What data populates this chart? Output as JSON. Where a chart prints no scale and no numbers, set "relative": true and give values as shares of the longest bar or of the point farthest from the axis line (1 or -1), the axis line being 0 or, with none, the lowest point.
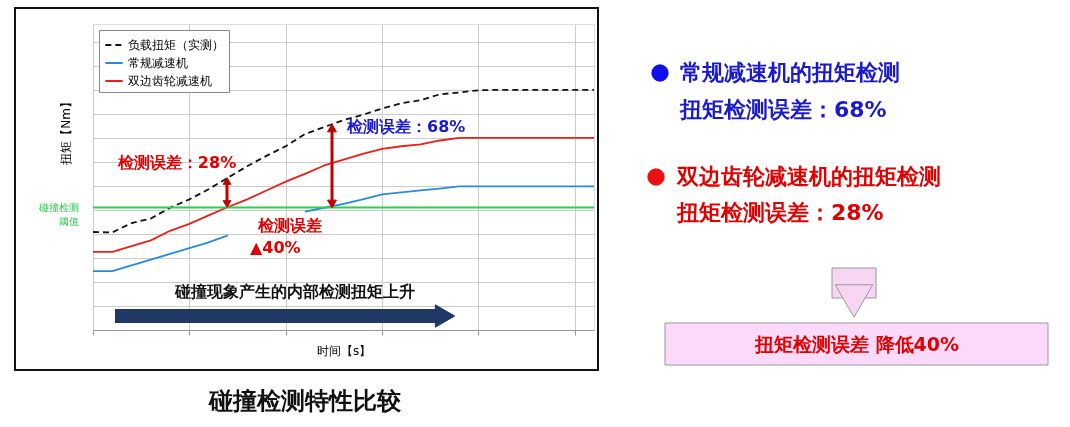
{
  "chart_data": {
    "type": "line",
    "relative": true,
    "title": "碰撞检测特性比较",
    "xlabel": "时间【s】",
    "ylabel": "扭矩【Nm】",
    "categories": [
      null,
      null,
      null,
      null,
      null,
      null,
      null,
      null,
      null,
      null,
      null,
      null,
      null,
      null,
      null,
      null,
      null,
      null,
      null,
      null,
      null,
      null,
      null,
      null,
      null,
      null,
      null
    ],
    "series": [
      {
        "name": "负载扭矩（实测）",
        "color": "#111111",
        "line_style": "dashed",
        "values": [
          0.408,
          0.406,
          0.445,
          0.464,
          0.509,
          0.544,
          0.586,
          0.634,
          0.682,
          0.725,
          0.765,
          0.816,
          0.845,
          0.874,
          0.896,
          0.922,
          0.944,
          0.957,
          0.981,
          0.989,
          0.998,
          1,
          1,
          1,
          1,
          1,
          1
        ]
      },
      {
        "name": "常规减速机",
        "color": "#2a8ad8",
        "line_style": "solid",
        "values": [
          0.245,
          0.245,
          0.269,
          0.293,
          0.317,
          0.341,
          0.365,
          0.394,
          null,
          null,
          null,
          0.493,
          0.509,
          0.525,
          0.544,
          0.565,
          0.573,
          0.581,
          0.589,
          0.598,
          0.598,
          0.598,
          0.598,
          0.598,
          0.598,
          0.598,
          0.598
        ]
      },
      {
        "name": "双边齿轮减速机",
        "color": "#e8201c",
        "line_style": "solid",
        "values": [
          0.325,
          0.325,
          0.349,
          0.373,
          0.413,
          0.442,
          0.477,
          0.512,
          0.544,
          0.581,
          0.618,
          0.65,
          0.685,
          0.709,
          0.733,
          0.754,
          0.765,
          0.773,
          0.789,
          0.8,
          0.8,
          0.8,
          0.8,
          0.8,
          0.8,
          0.8,
          0.8
        ]
      }
    ],
    "ref_lines": [
      {
        "axis": "y",
        "value": 0.51,
        "label": "碰撞检测阈值",
        "color": "#2ecc50"
      }
    ],
    "grid": true,
    "legend": "top left",
    "tick_labels": false,
    "annotations": [
      "检测误差：28%",
      "检测误差：68%",
      "检测误差",
      "▲40%",
      "碰撞现象产生的内部检测扭矩上升",
      "常规减速机的扭矩检测",
      "扭矩检测误差：68%",
      "双边齿轮减速机的扭矩检测",
      "扭矩检测误差：28%",
      "扭矩检测误差 降低40%"
    ]
  }
}
